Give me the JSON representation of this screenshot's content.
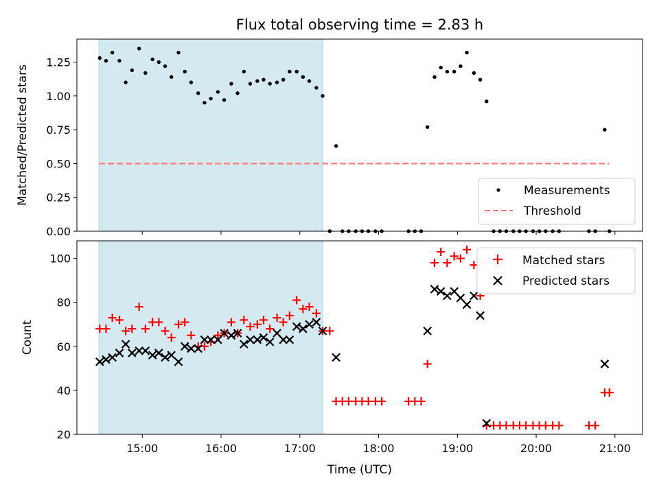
{
  "chart_data": {
    "type": "scatter",
    "title": "Flux total observing time = 2.83 h",
    "xlabel": "Time (UTC)",
    "xlim": [
      14.17,
      21.35
    ],
    "xticks": [
      {
        "value": 15,
        "label": "15:00"
      },
      {
        "value": 16,
        "label": "16:00"
      },
      {
        "value": 17,
        "label": "17:00"
      },
      {
        "value": 18,
        "label": "18:00"
      },
      {
        "value": 19,
        "label": "19:00"
      },
      {
        "value": 20,
        "label": "20:00"
      },
      {
        "value": 21,
        "label": "21:00"
      }
    ],
    "shaded_region": {
      "x_start": 14.45,
      "x_end": 17.29,
      "color": "#d4eaf0"
    },
    "panels": [
      {
        "ylabel": "Matched/Predicted stars",
        "ylim": [
          0,
          1.42
        ],
        "yticks": [
          {
            "value": 0.0,
            "label": "0.00"
          },
          {
            "value": 0.25,
            "label": "0.25"
          },
          {
            "value": 0.5,
            "label": "0.50"
          },
          {
            "value": 0.75,
            "label": "0.75"
          },
          {
            "value": 1.0,
            "label": "1.00"
          },
          {
            "value": 1.25,
            "label": "1.25"
          }
        ],
        "threshold": {
          "name": "Threshold",
          "value": 0.5,
          "x_start": 14.45,
          "x_end": 20.93,
          "color": "#ff7b7b"
        },
        "series": [
          {
            "name": "Measurements",
            "marker": "dot",
            "color": "#000000",
            "x": [
              14.46,
              14.54,
              14.62,
              14.71,
              14.79,
              14.87,
              14.96,
              15.04,
              15.13,
              15.21,
              15.29,
              15.37,
              15.46,
              15.54,
              15.62,
              15.71,
              15.79,
              15.87,
              15.96,
              16.04,
              16.13,
              16.21,
              16.29,
              16.37,
              16.46,
              16.54,
              16.62,
              16.71,
              16.79,
              16.87,
              16.96,
              17.04,
              17.12,
              17.21,
              17.29,
              17.38,
              17.46,
              17.54,
              17.62,
              17.71,
              17.79,
              17.87,
              17.96,
              18.04,
              18.38,
              18.46,
              18.54,
              18.62,
              18.71,
              18.79,
              18.87,
              18.96,
              19.04,
              19.12,
              19.21,
              19.29,
              19.37,
              19.46,
              19.54,
              19.62,
              19.71,
              19.79,
              19.87,
              19.96,
              20.04,
              20.12,
              20.21,
              20.29,
              20.67,
              20.75,
              20.87,
              20.93
            ],
            "y": [
              1.28,
              1.26,
              1.32,
              1.26,
              1.1,
              1.19,
              1.35,
              1.17,
              1.27,
              1.25,
              1.22,
              1.14,
              1.32,
              1.18,
              1.1,
              1.02,
              0.95,
              0.98,
              1.03,
              0.97,
              1.09,
              1.02,
              1.18,
              1.09,
              1.11,
              1.12,
              1.09,
              1.1,
              1.12,
              1.18,
              1.18,
              1.14,
              1.11,
              1.06,
              1.0,
              0.0,
              0.63,
              0.0,
              0.0,
              0.0,
              0.0,
              0.0,
              0.0,
              0.0,
              0.0,
              0.0,
              0.0,
              0.77,
              1.14,
              1.21,
              1.18,
              1.18,
              1.22,
              1.32,
              1.17,
              1.12,
              0.96,
              0.0,
              0.0,
              0.0,
              0.0,
              0.0,
              0.0,
              0.0,
              0.0,
              0.0,
              0.0,
              0.0,
              0.0,
              0.0,
              0.75,
              0.0
            ]
          }
        ],
        "legend": {
          "placement": "lower-right",
          "entries": [
            "Measurements",
            "Threshold"
          ]
        }
      },
      {
        "ylabel": "Count",
        "ylim": [
          20,
          108
        ],
        "yticks": [
          {
            "value": 20,
            "label": "20"
          },
          {
            "value": 40,
            "label": "40"
          },
          {
            "value": 60,
            "label": "60"
          },
          {
            "value": 80,
            "label": "80"
          },
          {
            "value": 100,
            "label": "100"
          }
        ],
        "series": [
          {
            "name": "Matched stars",
            "marker": "plus",
            "color": "#ff0000",
            "x": [
              14.46,
              14.54,
              14.62,
              14.71,
              14.79,
              14.87,
              14.96,
              15.04,
              15.13,
              15.21,
              15.29,
              15.37,
              15.46,
              15.54,
              15.62,
              15.71,
              15.79,
              15.87,
              15.96,
              16.04,
              16.13,
              16.21,
              16.29,
              16.37,
              16.46,
              16.54,
              16.62,
              16.71,
              16.79,
              16.87,
              16.96,
              17.04,
              17.12,
              17.21,
              17.29,
              17.38,
              17.46,
              17.54,
              17.62,
              17.71,
              17.79,
              17.87,
              17.96,
              18.04,
              18.38,
              18.46,
              18.54,
              18.62,
              18.71,
              18.79,
              18.87,
              18.96,
              19.04,
              19.12,
              19.21,
              19.29,
              19.37,
              19.46,
              19.54,
              19.62,
              19.71,
              19.79,
              19.87,
              19.96,
              20.04,
              20.12,
              20.21,
              20.29,
              20.67,
              20.75,
              20.87,
              20.93
            ],
            "y": [
              68,
              68,
              73,
              72,
              67,
              68,
              78,
              68,
              71,
              71,
              67,
              64,
              70,
              71,
              65,
              60,
              60,
              62,
              65,
              66,
              71,
              66,
              72,
              69,
              70,
              72,
              68,
              73,
              71,
              74,
              81,
              77,
              78,
              75,
              67,
              67,
              35,
              35,
              35,
              35,
              35,
              35,
              35,
              35,
              35,
              35,
              35,
              52,
              98,
              103,
              98,
              101,
              100,
              104,
              97,
              83,
              24,
              24,
              24,
              24,
              24,
              24,
              24,
              24,
              24,
              24,
              24,
              24,
              24,
              24,
              39,
              39
            ]
          },
          {
            "name": "Predicted stars",
            "marker": "x",
            "color": "#000000",
            "x": [
              14.46,
              14.54,
              14.62,
              14.71,
              14.79,
              14.87,
              14.96,
              15.04,
              15.13,
              15.21,
              15.29,
              15.37,
              15.46,
              15.54,
              15.62,
              15.71,
              15.79,
              15.87,
              15.96,
              16.04,
              16.13,
              16.21,
              16.29,
              16.37,
              16.46,
              16.54,
              16.62,
              16.71,
              16.79,
              16.87,
              16.96,
              17.04,
              17.12,
              17.21,
              17.29,
              17.46,
              18.62,
              18.71,
              18.79,
              18.87,
              18.96,
              19.04,
              19.12,
              19.21,
              19.29,
              19.37,
              20.87
            ],
            "y": [
              53,
              54,
              55,
              57,
              61,
              57,
              58,
              58,
              56,
              57,
              55,
              56,
              53,
              60,
              59,
              59,
              63,
              63,
              63,
              66,
              65,
              66,
              61,
              63,
              63,
              64,
              62,
              66,
              63,
              63,
              69,
              68,
              70,
              71,
              67,
              55,
              67,
              86,
              85,
              83,
              85,
              82,
              79,
              83,
              74,
              25,
              52
            ]
          }
        ],
        "legend": {
          "placement": "top-right",
          "entries": [
            "Matched stars",
            "Predicted stars"
          ]
        }
      }
    ]
  }
}
